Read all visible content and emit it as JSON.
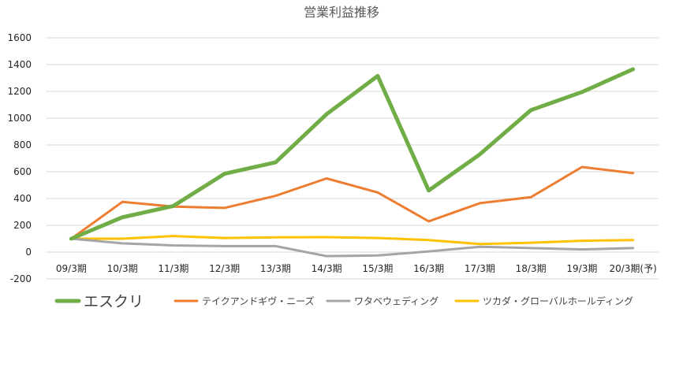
{
  "chart_data": {
    "type": "line",
    "title": "営業利益推移",
    "categories": [
      "09/3期",
      "10/3期",
      "11/3期",
      "12/3期",
      "13/3期",
      "14/3期",
      "15/3期",
      "16/3期",
      "17/3期",
      "18/3期",
      "19/3期",
      "20/3期(予)"
    ],
    "ylim": [
      -200,
      1600
    ],
    "yticks": [
      -200,
      0,
      200,
      400,
      600,
      800,
      1000,
      1200,
      1400,
      1600
    ],
    "grid": true,
    "legend": "bottom",
    "series": [
      {
        "name": "エスクリ",
        "color": "#70AD47",
        "values": [
          100,
          260,
          345,
          585,
          670,
          1030,
          1315,
          460,
          730,
          1060,
          1195,
          1365
        ]
      },
      {
        "name": "テイクアンドギヴ・ニーズ",
        "color": "#ED7D31",
        "values": [
          100,
          375,
          340,
          330,
          420,
          550,
          445,
          230,
          365,
          410,
          635,
          590
        ]
      },
      {
        "name": "ワタベウェディング",
        "color": "#A5A5A5",
        "values": [
          100,
          65,
          50,
          45,
          45,
          -30,
          -25,
          5,
          40,
          30,
          20,
          30
        ]
      },
      {
        "name": "ツカダ・グローバルホールディング",
        "color": "#FFC000",
        "values": [
          100,
          100,
          120,
          105,
          110,
          112,
          105,
          90,
          60,
          70,
          85,
          90
        ]
      }
    ]
  }
}
